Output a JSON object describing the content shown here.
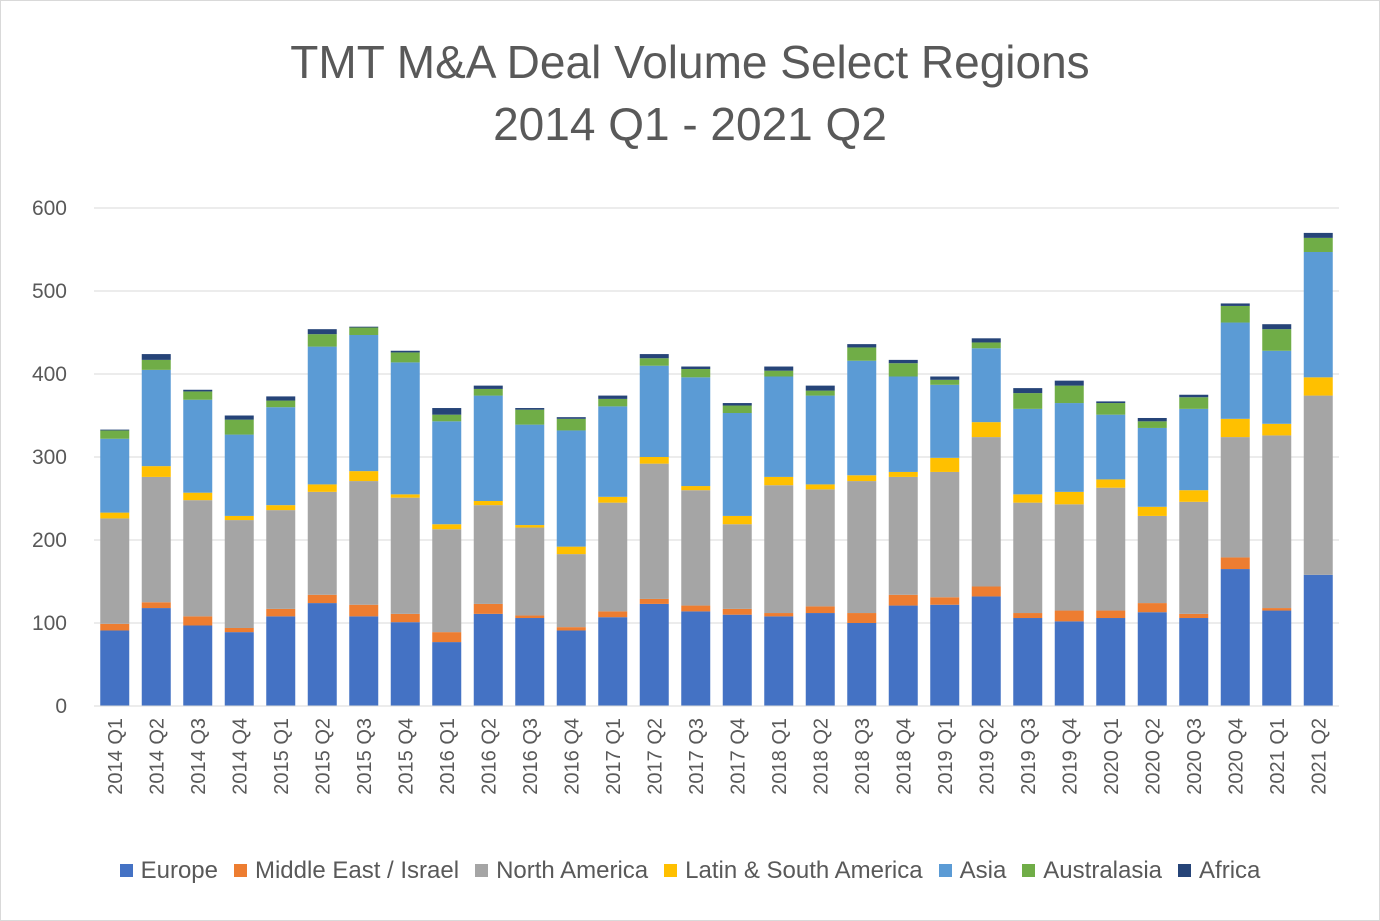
{
  "chart_data": {
    "type": "bar",
    "stacked": true,
    "title_line1": "TMT M&A Deal Volume Select Regions",
    "title_line2": "2014 Q1 - 2021 Q2",
    "xlabel": "",
    "ylabel": "",
    "ylim": [
      0,
      600
    ],
    "yticks": [
      "0",
      "100",
      "200",
      "300",
      "400",
      "500",
      "600"
    ],
    "grid": true,
    "legend_position": "bottom",
    "categories": [
      "2014 Q1",
      "2014 Q2",
      "2014 Q3",
      "2014 Q4",
      "2015 Q1",
      "2015 Q2",
      "2015 Q3",
      "2015 Q4",
      "2016 Q1",
      "2016 Q2",
      "2016 Q3",
      "2016 Q4",
      "2017 Q1",
      "2017 Q2",
      "2017 Q3",
      "2017 Q4",
      "2018 Q1",
      "2018 Q2",
      "2018 Q3",
      "2018 Q4",
      "2019 Q1",
      "2019 Q2",
      "2019 Q3",
      "2019 Q4",
      "2020 Q1",
      "2020 Q2",
      "2020 Q3",
      "2020 Q4",
      "2021 Q1",
      "2021 Q2"
    ],
    "series": [
      {
        "name": "Europe",
        "color": "#4472c4",
        "values": [
          91,
          118,
          97,
          89,
          108,
          124,
          108,
          101,
          77,
          111,
          106,
          91,
          107,
          123,
          114,
          110,
          108,
          112,
          100,
          121,
          122,
          132,
          106,
          102,
          106,
          113,
          106,
          165,
          115,
          158
        ]
      },
      {
        "name": "Middle East / Israel",
        "color": "#ed7d31",
        "values": [
          8,
          7,
          11,
          5,
          9,
          10,
          14,
          10,
          12,
          12,
          3,
          4,
          7,
          6,
          7,
          7,
          4,
          8,
          12,
          13,
          9,
          12,
          6,
          13,
          9,
          11,
          5,
          14,
          3,
          0
        ]
      },
      {
        "name": "North America",
        "color": "#a5a5a5",
        "values": [
          127,
          151,
          140,
          130,
          119,
          124,
          149,
          140,
          124,
          119,
          106,
          88,
          131,
          163,
          139,
          102,
          154,
          141,
          159,
          142,
          151,
          180,
          133,
          128,
          148,
          105,
          135,
          145,
          208,
          216
        ]
      },
      {
        "name": "Latin & South America",
        "color": "#ffc000",
        "values": [
          7,
          13,
          9,
          5,
          6,
          9,
          12,
          4,
          6,
          5,
          3,
          9,
          7,
          8,
          5,
          10,
          10,
          6,
          7,
          6,
          17,
          18,
          10,
          15,
          10,
          11,
          14,
          22,
          14,
          22
        ]
      },
      {
        "name": "Asia",
        "color": "#5b9bd5",
        "values": [
          89,
          116,
          112,
          98,
          118,
          166,
          164,
          159,
          124,
          127,
          121,
          140,
          109,
          110,
          131,
          124,
          121,
          107,
          138,
          115,
          88,
          89,
          103,
          107,
          78,
          95,
          98,
          116,
          88,
          151
        ]
      },
      {
        "name": "Australasia",
        "color": "#70ad47",
        "values": [
          10,
          12,
          10,
          18,
          8,
          15,
          9,
          12,
          8,
          8,
          18,
          14,
          9,
          9,
          10,
          9,
          7,
          6,
          16,
          16,
          6,
          7,
          19,
          21,
          14,
          8,
          14,
          20,
          26,
          17
        ]
      },
      {
        "name": "Africa",
        "color": "#264478",
        "values": [
          1,
          7,
          2,
          5,
          5,
          6,
          1,
          2,
          8,
          4,
          2,
          2,
          4,
          5,
          3,
          3,
          5,
          6,
          4,
          4,
          4,
          5,
          6,
          6,
          2,
          4,
          3,
          3,
          6,
          6
        ]
      }
    ]
  }
}
